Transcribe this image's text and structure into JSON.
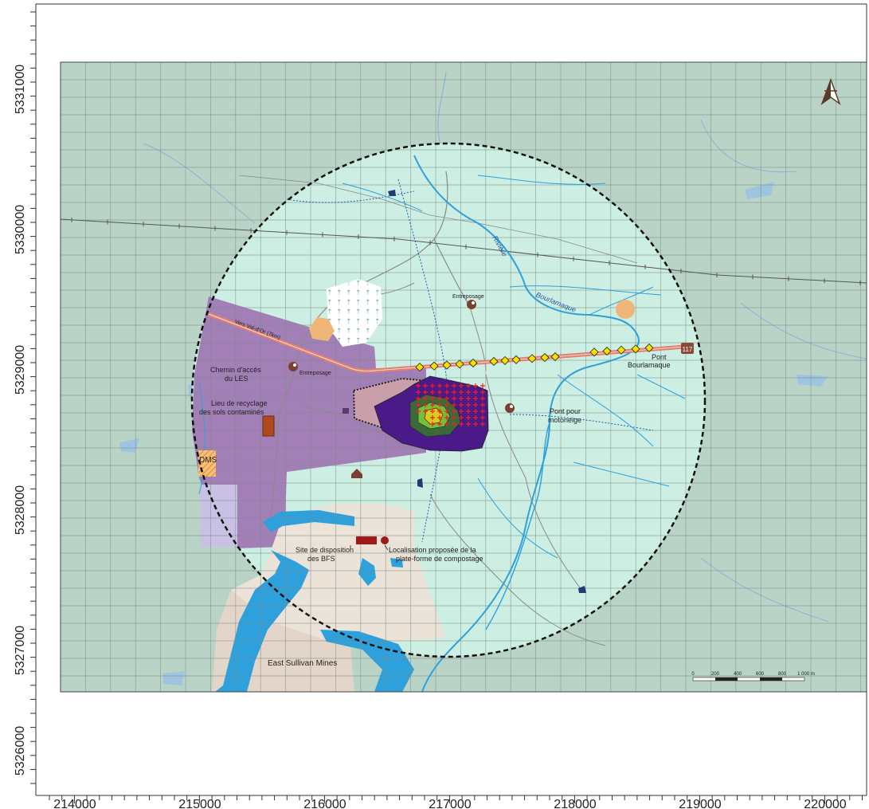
{
  "axes": {
    "x_ticks": [
      "214000",
      "215000",
      "216000",
      "217000",
      "218000",
      "219000",
      "220000"
    ],
    "y_ticks": [
      "5331000",
      "5330000",
      "5329000",
      "5328000",
      "5327000",
      "5326000"
    ]
  },
  "labels": {
    "entreposage_north": "Entreposage",
    "entreposage_west": "Entreposage",
    "riviere": "Rivière",
    "bourlamaque": "Bourlamaque",
    "vers_val_dor": "Vers Val-d'Or (7km)",
    "chemin_1": "Chemin d'accès",
    "chemin_2": "du LES",
    "lieu_1": "Lieu de recyclage",
    "lieu_2": "des sols contaminés",
    "dms": "DMS",
    "pont_motoneige_1": "Pont pour",
    "pont_motoneige_2": "motoneige",
    "pont_bourl_1": "Pont",
    "pont_bourl_2": "Bourlamaque",
    "route_117": "117",
    "site_bfs_1": "Site de disposition",
    "site_bfs_2": "des BFS",
    "localisation_1": "Localisation proposée de la",
    "localisation_2": "plate-forme de compostage",
    "east_sullivan": "East Sullivan Mines"
  },
  "scale_bar": {
    "ticks": [
      "0",
      "200",
      "400",
      "600",
      "800",
      "1 000 m"
    ]
  },
  "colors": {
    "map_background": "#b9d4c6",
    "buffer_fill": "#cdeee2",
    "purple_zone": "#a27fb7",
    "mine_zone": "#ece3d8",
    "water": "#2ea1dc",
    "plume_outer": "#4a1a88",
    "plume_mid": "#3a6a3a",
    "plume_inner": "#6fc23a",
    "receptor": "#f6e000",
    "road_highway": "#e08070"
  },
  "icons": {
    "north_arrow": "north-arrow-icon"
  }
}
